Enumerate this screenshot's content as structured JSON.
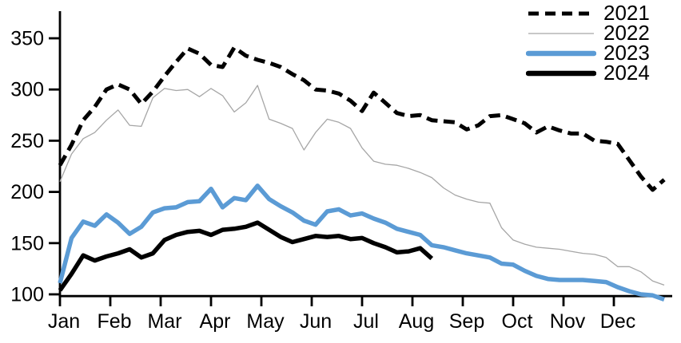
{
  "chart_data": {
    "type": "line",
    "title": "",
    "xlabel": "",
    "ylabel": "",
    "x_axis": {
      "tick_labels": [
        "Jan",
        "Feb",
        "Mar",
        "Apr",
        "May",
        "Jun",
        "Jul",
        "Aug",
        "Sep",
        "Oct",
        "Nov",
        "Dec"
      ],
      "note": "weekly data points spanning one calendar year"
    },
    "y_axis": {
      "ticks": [
        100,
        150,
        200,
        250,
        300,
        350
      ],
      "range": [
        100,
        350
      ],
      "grid": false
    },
    "legend": {
      "position": "top-right"
    },
    "series": [
      {
        "name": "2021",
        "color": "#000000",
        "style": "dashed",
        "width": 5,
        "values": [
          226,
          246,
          270,
          283,
          300,
          305,
          300,
          286,
          298,
          313,
          327,
          340,
          335,
          324,
          322,
          341,
          333,
          329,
          326,
          322,
          315,
          309,
          300,
          299,
          296,
          289,
          279,
          297,
          287,
          277,
          274,
          275,
          270,
          269,
          268,
          261,
          265,
          274,
          275,
          271,
          267,
          258,
          264,
          260,
          257,
          257,
          250,
          249,
          247,
          231,
          215,
          202,
          212
        ]
      },
      {
        "name": "2022",
        "color": "#A6A6A6",
        "style": "solid",
        "width": 1.3,
        "values": [
          210,
          237,
          252,
          258,
          270,
          280,
          265,
          264,
          292,
          301,
          299,
          300,
          293,
          301,
          294,
          278,
          287,
          304,
          271,
          267,
          262,
          241,
          258,
          271,
          268,
          262,
          243,
          230,
          227,
          226,
          223,
          219,
          214,
          204,
          197,
          193,
          190,
          189,
          165,
          153,
          149,
          146,
          145,
          144,
          142,
          140,
          139,
          136,
          127,
          127,
          122,
          113,
          109
        ]
      },
      {
        "name": "2023",
        "color": "#5B9BD5",
        "style": "solid",
        "width": 5.5,
        "values": [
          111,
          155,
          171,
          167,
          178,
          170,
          159,
          166,
          180,
          184,
          185,
          190,
          191,
          203,
          185,
          194,
          192,
          206,
          193,
          186,
          180,
          172,
          168,
          181,
          183,
          177,
          179,
          174,
          170,
          164,
          161,
          158,
          148,
          146,
          143,
          140,
          138,
          136,
          130,
          129,
          123,
          118,
          115,
          114,
          114,
          114,
          113,
          112,
          107,
          103,
          100,
          99,
          95
        ]
      },
      {
        "name": "2024",
        "color": "#000000",
        "style": "solid",
        "width": 5.5,
        "values": [
          104,
          120,
          138,
          133,
          137,
          140,
          144,
          136,
          140,
          153,
          158,
          161,
          162,
          158,
          163,
          164,
          166,
          170,
          163,
          156,
          151,
          154,
          157,
          156,
          157,
          154,
          155,
          150,
          146,
          141,
          142,
          145,
          135
        ]
      }
    ]
  }
}
